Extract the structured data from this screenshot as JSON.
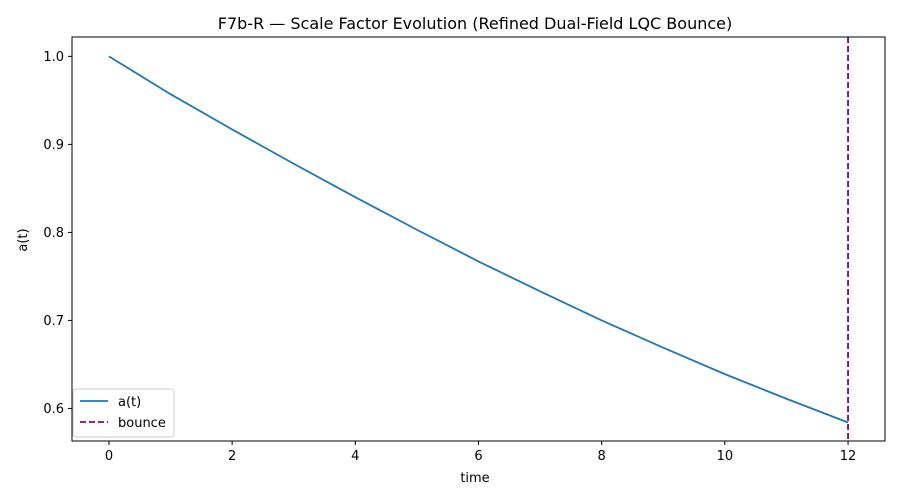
{
  "chart_data": {
    "type": "line",
    "title": "F7b-R — Scale Factor Evolution (Refined Dual-Field LQC Bounce)",
    "xlabel": "time",
    "ylabel": "a(t)",
    "xlim": [
      -0.6,
      12.6
    ],
    "ylim": [
      0.563,
      1.022
    ],
    "xticks": [
      0,
      2,
      4,
      6,
      8,
      10,
      12
    ],
    "yticks": [
      0.6,
      0.7,
      0.8,
      0.9,
      1.0
    ],
    "xtick_labels": [
      "0",
      "2",
      "4",
      "6",
      "8",
      "10",
      "12"
    ],
    "ytick_labels": [
      "0.6",
      "0.7",
      "0.8",
      "0.9",
      "1.0"
    ],
    "grid": false,
    "legend_position": "lower-left",
    "series": [
      {
        "name": "a(t)",
        "color": "#1f77b4",
        "style": "solid",
        "x": [
          0,
          1,
          2,
          3,
          4,
          5,
          6,
          7,
          8,
          9,
          10,
          11,
          12
        ],
        "y": [
          1.0,
          0.957,
          0.917,
          0.878,
          0.84,
          0.803,
          0.767,
          0.733,
          0.7,
          0.669,
          0.639,
          0.611,
          0.584
        ]
      }
    ],
    "vlines": [
      {
        "name": "bounce",
        "x": 12,
        "color": "#800080",
        "style": "dashed"
      }
    ]
  }
}
